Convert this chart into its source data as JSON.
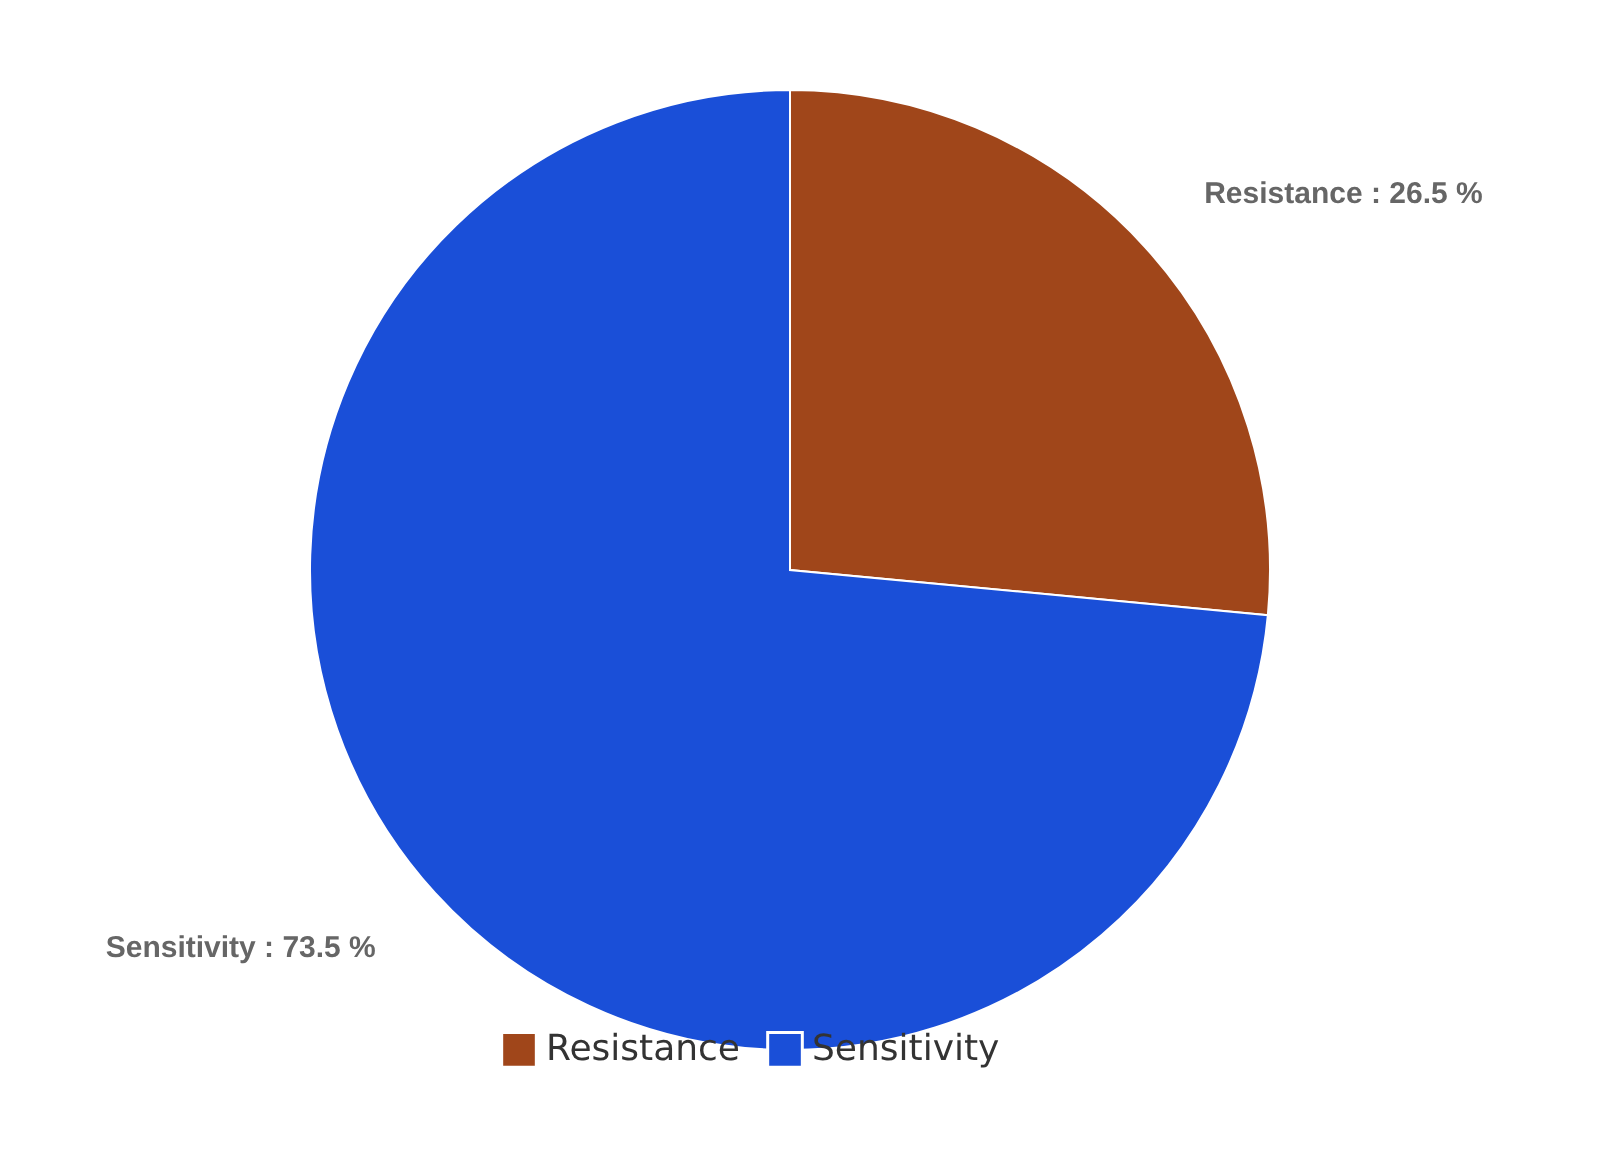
{
  "chart_data": {
    "type": "pie",
    "categories": [
      "Resistance",
      "Sensitivity"
    ],
    "values": [
      26.5,
      73.5
    ],
    "colors": [
      "#a0461a",
      "#1a4fd8"
    ],
    "value_labels": [
      "Resistance : 26.5 %",
      "Sensitivity : 73.5 %"
    ],
    "legend": "bottom"
  }
}
